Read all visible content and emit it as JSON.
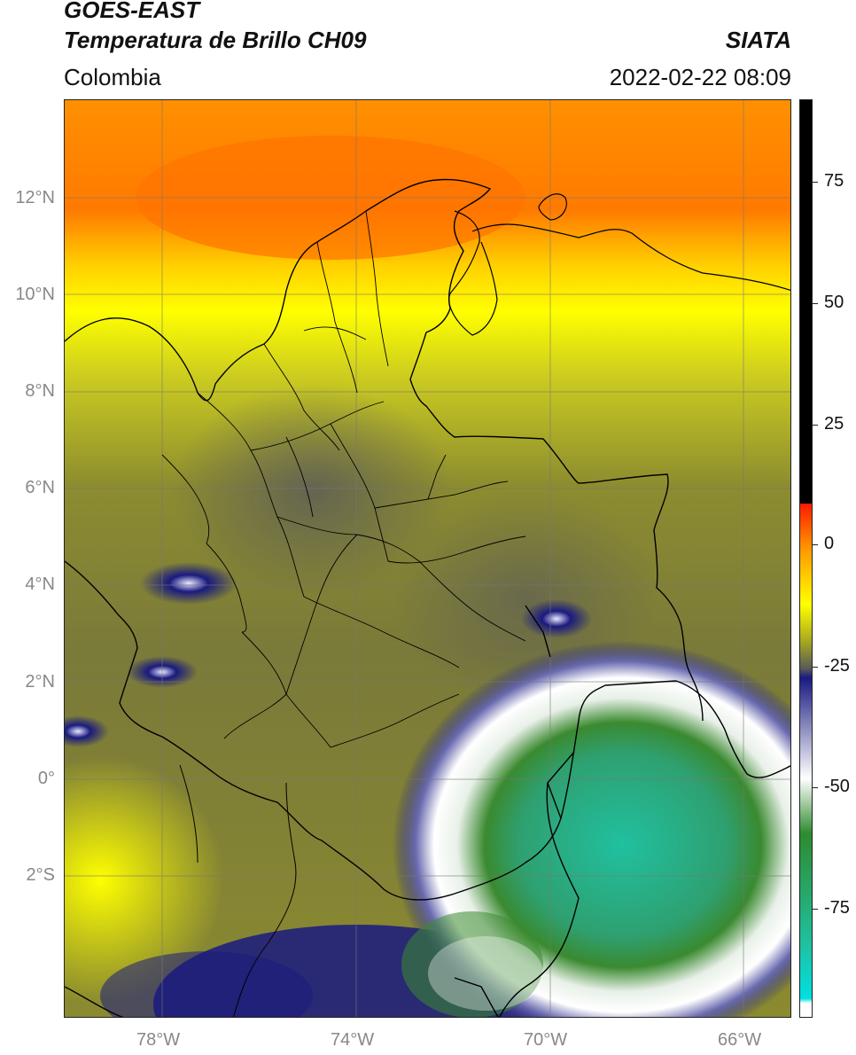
{
  "header": {
    "satellite": "GOES-EAST",
    "product": "Temperatura de Brillo CH09",
    "region": "Colombia",
    "agency": "SIATA",
    "datetime": "2022-02-22 08:09"
  },
  "axes": {
    "lat_labels": [
      "12°N",
      "10°N",
      "8°N",
      "6°N",
      "4°N",
      "2°N",
      "0°",
      "2°S"
    ],
    "lon_labels": [
      "78°W",
      "74°W",
      "70°W",
      "66°W"
    ]
  },
  "colorbar": {
    "labels": [
      "75",
      "50",
      "25",
      "0",
      "-25",
      "-50",
      "-75"
    ],
    "colors": {
      "warm": "#000000",
      "red": "#ff1a00",
      "orange": "#ff9900",
      "yellow": "#ffff00",
      "olive": "#a8a820",
      "gray": "#5a5a5a",
      "navy": "#1a1a80",
      "white": "#ffffff",
      "green": "#2e8b2e",
      "teal": "#20c0a0",
      "cyan": "#00e0e0"
    }
  }
}
